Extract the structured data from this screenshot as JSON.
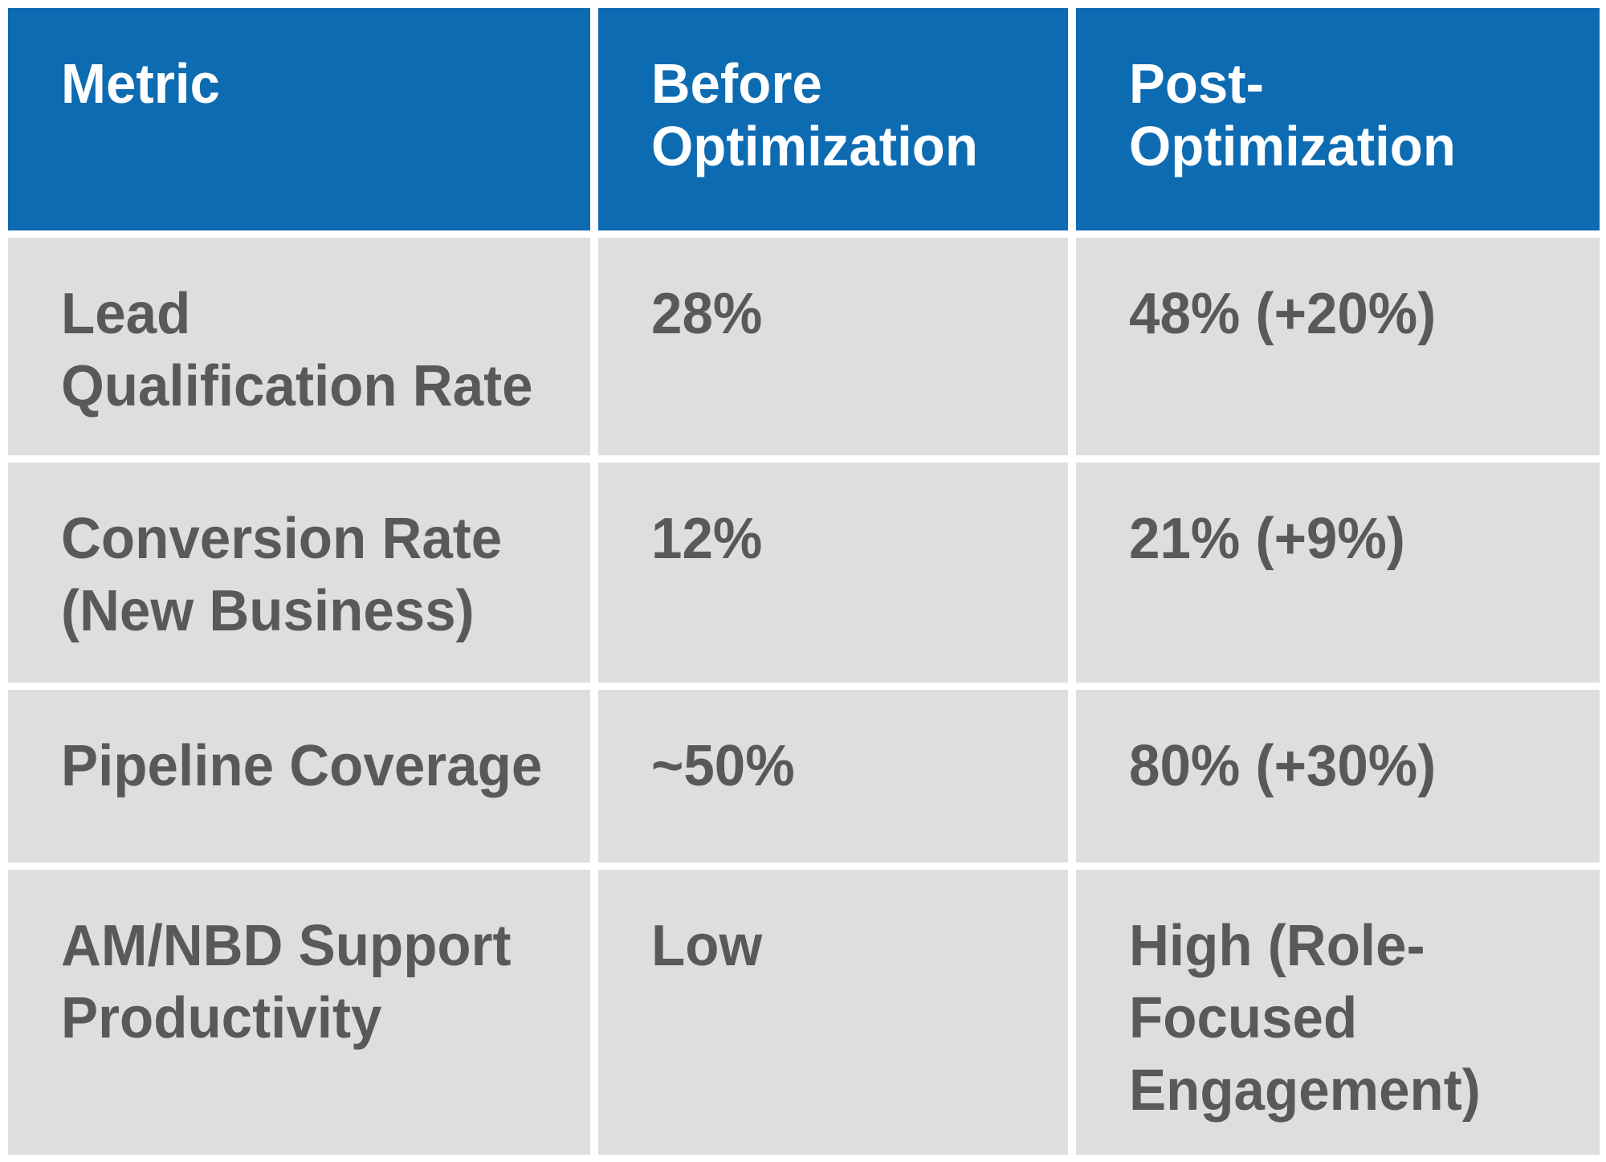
{
  "colors": {
    "header_bg": "#0D6BB2",
    "header_text": "#FFFFFF",
    "cell_bg": "#DEDEDE",
    "cell_text": "#595959",
    "page_bg": "#FFFFFF"
  },
  "table": {
    "header": [
      "Metric",
      "Before\nOptimization",
      "Post-\nOptimization"
    ],
    "rows": [
      [
        "Lead\nQualification Rate",
        "28%",
        "48% (+20%)"
      ],
      [
        "Conversion Rate\n(New Business)",
        "12%",
        "21% (+9%)"
      ],
      [
        "Pipeline Coverage",
        "~50%",
        "80% (+30%)"
      ],
      [
        "AM/NBD Support\nProductivity",
        "Low",
        "High (Role-\nFocused\nEngagement)"
      ]
    ]
  }
}
